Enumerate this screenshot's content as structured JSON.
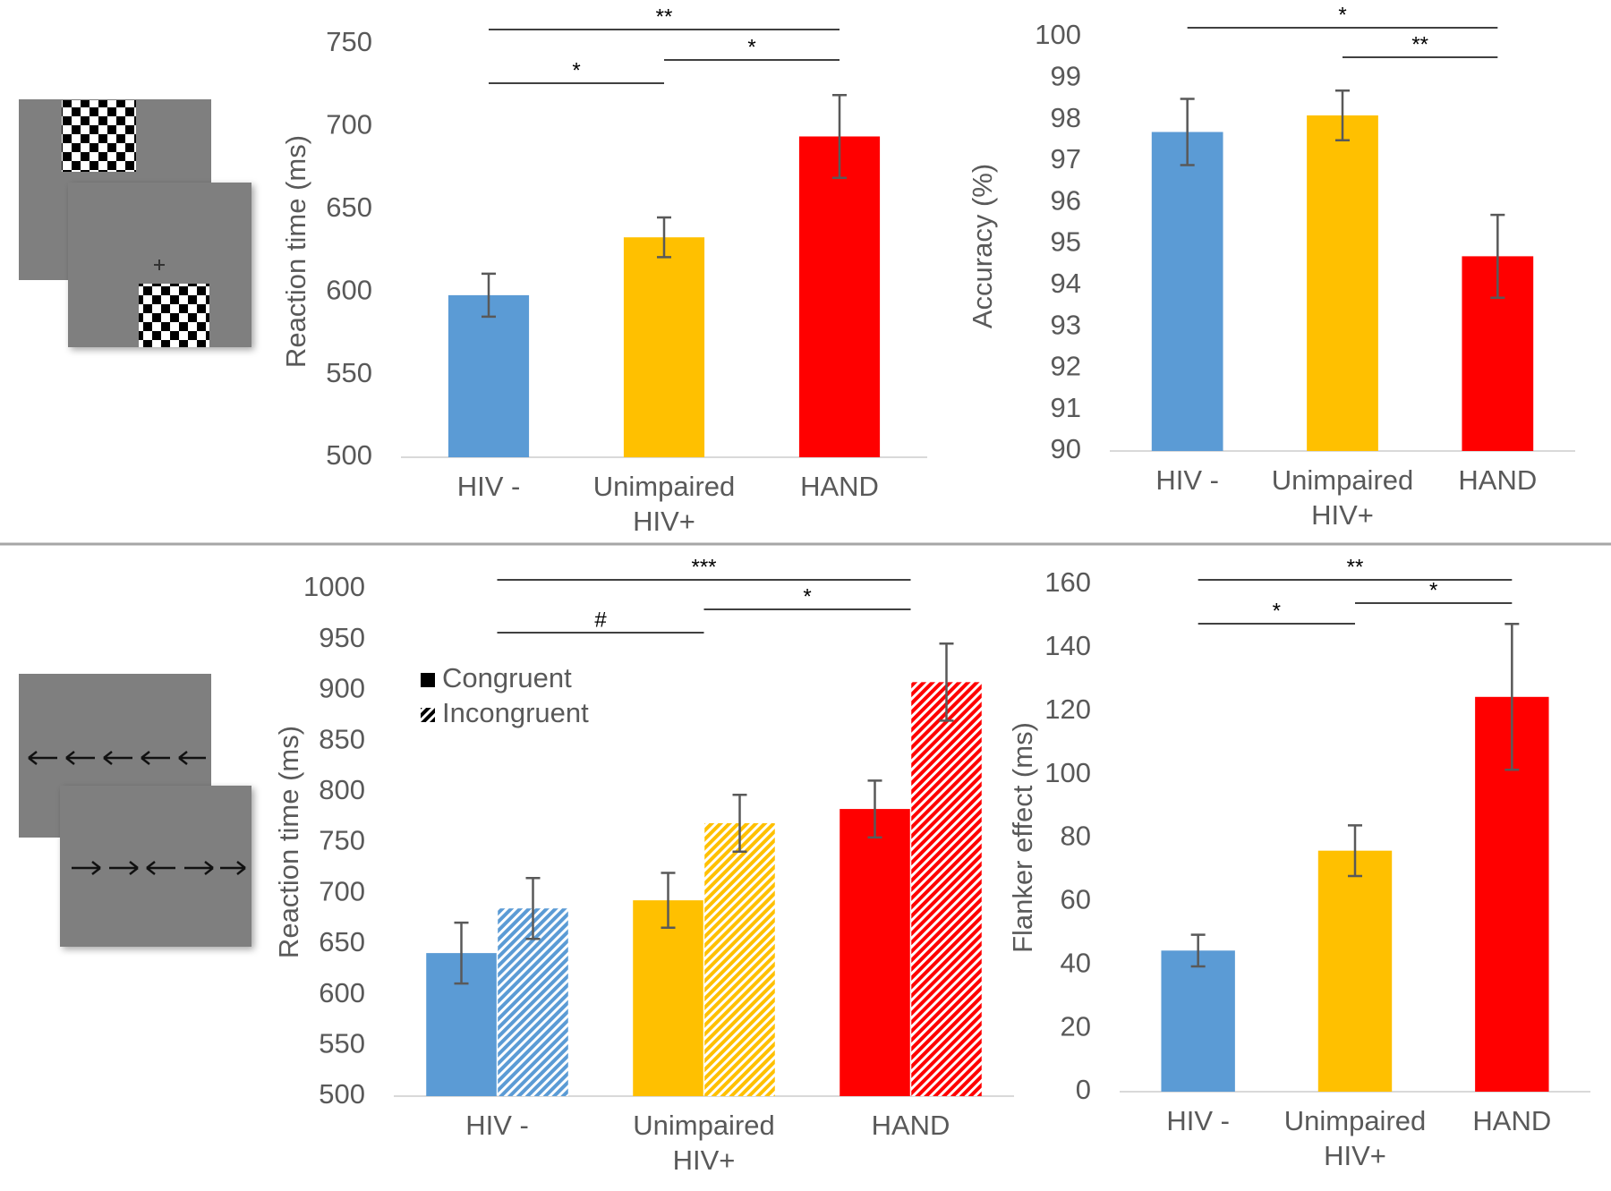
{
  "chart_data": [
    {
      "type": "bar",
      "y_label": "Reaction time (ms)",
      "categories": [
        "HIV -",
        "Unimpaired HIV+",
        "HAND"
      ],
      "values": [
        598,
        633,
        694
      ],
      "errors": [
        13,
        12,
        25
      ],
      "colors": [
        "#5b9bd5",
        "#ffc000",
        "#ff0000"
      ],
      "ylim": [
        500,
        750
      ],
      "yticks": [
        500,
        550,
        600,
        650,
        700,
        750
      ],
      "annotations": [
        "**",
        "*",
        "*"
      ]
    },
    {
      "type": "bar",
      "y_label": "Accuracy (%)",
      "categories": [
        "HIV -",
        "Unimpaired HIV+",
        "HAND"
      ],
      "values": [
        97.7,
        98.1,
        94.7
      ],
      "errors": [
        0.8,
        0.6,
        1.0
      ],
      "colors": [
        "#5b9bd5",
        "#ffc000",
        "#ff0000"
      ],
      "ylim": [
        90,
        100
      ],
      "yticks": [
        90,
        91,
        92,
        93,
        94,
        95,
        96,
        97,
        98,
        99,
        100
      ],
      "annotations": [
        "*",
        "**"
      ]
    },
    {
      "type": "bar",
      "y_label": "Reaction time (ms)",
      "categories": [
        "HIV -",
        "Unimpaired HIV+",
        "HAND"
      ],
      "colors": [
        "#5b9bd5",
        "#ffc000",
        "#ff0000"
      ],
      "series": [
        {
          "name": "Congruent",
          "color": "#000000",
          "pattern": "solid",
          "values": [
            641,
            693,
            783
          ],
          "errors": [
            30,
            27,
            28
          ]
        },
        {
          "name": "Incongruent",
          "color": "#000000",
          "pattern": "hatch",
          "values": [
            685,
            769,
            908
          ],
          "errors": [
            30,
            28,
            38
          ]
        }
      ],
      "ylim": [
        500,
        1000
      ],
      "yticks": [
        500,
        550,
        600,
        650,
        700,
        750,
        800,
        850,
        900,
        950,
        1000
      ],
      "legend": "upper left",
      "annotations": [
        "***",
        "*",
        "#"
      ]
    },
    {
      "type": "bar",
      "y_label": "Flanker effect (ms)",
      "categories": [
        "HIV -",
        "Unimpaired HIV+",
        "HAND"
      ],
      "values": [
        44.5,
        76,
        124.5
      ],
      "errors": [
        5,
        8,
        23
      ],
      "colors": [
        "#5b9bd5",
        "#ffc000",
        "#ff0000"
      ],
      "ylim": [
        0,
        160
      ],
      "yticks": [
        0,
        20,
        40,
        60,
        80,
        100,
        120,
        140,
        160
      ],
      "annotations": [
        "**",
        "*",
        "*"
      ]
    }
  ]
}
